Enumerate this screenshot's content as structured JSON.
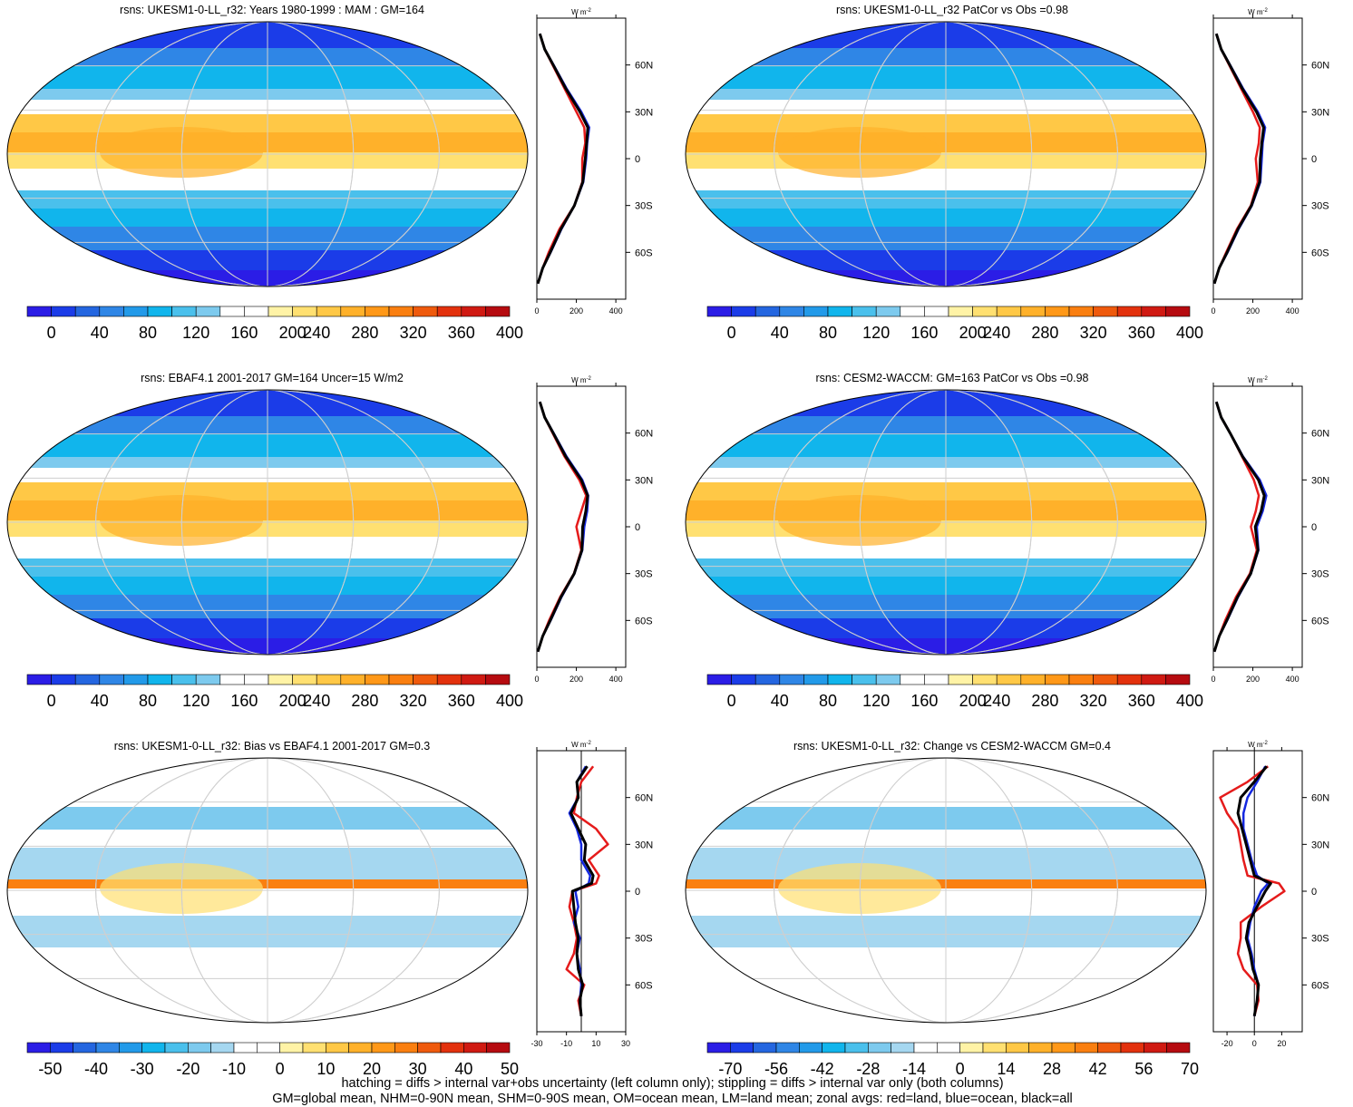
{
  "palettes": {
    "mean": [
      "#2b1de6",
      "#1b3ce8",
      "#2466e0",
      "#2f86e6",
      "#229ae9",
      "#11b5ec",
      "#4ac0ec",
      "#7dcaee",
      "#ffffff",
      "#ffffff",
      "#fff3a6",
      "#ffe071",
      "#ffc846",
      "#ffb12a",
      "#ff9818",
      "#fa7f10",
      "#ef5a0d",
      "#e3310d",
      "#d01a12",
      "#b60b10"
    ],
    "diff": [
      "#2b1de6",
      "#1b3ce8",
      "#2466e0",
      "#2f86e6",
      "#229ae9",
      "#11b5ec",
      "#4ac0ec",
      "#7dcaee",
      "#a5d7f0",
      "#ffffff",
      "#ffffff",
      "#fff3a6",
      "#ffe071",
      "#ffc846",
      "#ffb12a",
      "#ff9818",
      "#fa7f10",
      "#ef5a0d",
      "#e3310d",
      "#d01a12",
      "#b60b10"
    ]
  },
  "line_colors": {
    "land": "#e51b1b",
    "ocean": "#1428e0",
    "all": "#000000"
  },
  "footer": {
    "line1": "hatching = diffs > internal var+obs uncertainty (left column only); stippling = diffs > internal var only (both columns)",
    "line2": "GM=global mean, NHM=0-90N mean, SHM=0-90S mean, OM=ocean mean, LM=land mean; zonal avgs: red=land, blue=ocean, black=all"
  },
  "chart_data": [
    {
      "type": "heatmap",
      "id": "p1",
      "title": "rsns: UKESM1-0-LL_r32: Years 1980-1999 : MAM : GM=164",
      "colorbar_labels": [
        "0",
        "40",
        "80",
        "120",
        "160",
        "200",
        "240",
        "280",
        "320",
        "360",
        "400"
      ],
      "zonal_profile": {
        "type": "line",
        "unit_label": "W m",
        "unit_exp": "-2",
        "xlim": [
          0,
          450
        ],
        "xticks": [
          "0",
          "200",
          "400"
        ],
        "ylim": [
          -90,
          90
        ],
        "yticks": [
          "60N",
          "30N",
          "0",
          "30S",
          "60S"
        ],
        "lat": [
          -80,
          -70,
          -60,
          -45,
          -30,
          -15,
          0,
          10,
          20,
          30,
          45,
          60,
          70,
          80
        ],
        "series": [
          {
            "name": "land",
            "values": [
              5,
              30,
              60,
              115,
              190,
              230,
              230,
              245,
              240,
              200,
              140,
              80,
              40,
              15
            ]
          },
          {
            "name": "ocean",
            "values": [
              5,
              30,
              70,
              125,
              190,
              235,
              250,
              255,
              265,
              225,
              150,
              85,
              40,
              15
            ]
          },
          {
            "name": "all",
            "values": [
              5,
              30,
              68,
              122,
              190,
              233,
              245,
              252,
              258,
              218,
              146,
              83,
              40,
              15
            ]
          }
        ]
      }
    },
    {
      "type": "heatmap",
      "id": "p2",
      "title": "rsns: UKESM1-0-LL_r32 PatCor vs Obs =0.98",
      "colorbar_labels": [
        "0",
        "40",
        "80",
        "120",
        "160",
        "200",
        "240",
        "280",
        "320",
        "360",
        "400"
      ],
      "zonal_profile": {
        "type": "line",
        "unit_label": "W m",
        "unit_exp": "-2",
        "xlim": [
          0,
          450
        ],
        "xticks": [
          "0",
          "200",
          "400"
        ],
        "ylim": [
          -90,
          90
        ],
        "yticks": [
          "60N",
          "30N",
          "0",
          "30S",
          "60S"
        ],
        "lat": [
          -80,
          -70,
          -60,
          -45,
          -30,
          -15,
          0,
          10,
          20,
          30,
          45,
          60,
          70,
          80
        ],
        "series": [
          {
            "name": "land",
            "values": [
              5,
              30,
              65,
              120,
              190,
              225,
              215,
              230,
              235,
              200,
              140,
              80,
              40,
              15
            ]
          },
          {
            "name": "ocean",
            "values": [
              5,
              30,
              72,
              128,
              195,
              238,
              245,
              250,
              262,
              225,
              150,
              85,
              40,
              15
            ]
          },
          {
            "name": "all",
            "values": [
              5,
              30,
              70,
              125,
              193,
              234,
              238,
              245,
              255,
              218,
              146,
              83,
              40,
              15
            ]
          }
        ]
      }
    },
    {
      "type": "heatmap",
      "id": "p3",
      "title": "rsns: EBAF4.1 2001-2017 GM=164 Uncer=15 W/m2",
      "colorbar_labels": [
        "0",
        "40",
        "80",
        "120",
        "160",
        "200",
        "240",
        "280",
        "320",
        "360",
        "400"
      ],
      "zonal_profile": {
        "type": "line",
        "unit_label": "W m",
        "unit_exp": "-2",
        "xlim": [
          0,
          450
        ],
        "xticks": [
          "0",
          "200",
          "400"
        ],
        "ylim": [
          -90,
          90
        ],
        "yticks": [
          "60N",
          "30N",
          "0",
          "30S",
          "60S"
        ],
        "lat": [
          -80,
          -70,
          -60,
          -45,
          -30,
          -15,
          0,
          10,
          20,
          30,
          45,
          60,
          70,
          80
        ],
        "series": [
          {
            "name": "land",
            "values": [
              5,
              30,
              62,
              118,
              188,
              225,
              200,
              225,
              250,
              215,
              140,
              80,
              40,
              15
            ]
          },
          {
            "name": "ocean",
            "values": [
              5,
              30,
              70,
              125,
              190,
              230,
              240,
              255,
              260,
              230,
              150,
              85,
              40,
              15
            ]
          },
          {
            "name": "all",
            "values": [
              5,
              30,
              68,
              122,
              189,
              228,
              232,
              248,
              257,
              225,
              146,
              83,
              40,
              15
            ]
          }
        ]
      }
    },
    {
      "type": "heatmap",
      "id": "p4",
      "title": "rsns: CESM2-WACCM: GM=163 PatCor vs Obs =0.98",
      "colorbar_labels": [
        "0",
        "40",
        "80",
        "120",
        "160",
        "200",
        "240",
        "280",
        "320",
        "360",
        "400"
      ],
      "zonal_profile": {
        "type": "line",
        "unit_label": "W m",
        "unit_exp": "-2",
        "xlim": [
          0,
          450
        ],
        "xticks": [
          "0",
          "200",
          "400"
        ],
        "ylim": [
          -90,
          90
        ],
        "yticks": [
          "60N",
          "30N",
          "0",
          "30S",
          "60S"
        ],
        "lat": [
          -80,
          -70,
          -60,
          -45,
          -30,
          -15,
          0,
          10,
          20,
          30,
          45,
          60,
          70,
          80
        ],
        "series": [
          {
            "name": "land",
            "values": [
              5,
              30,
              60,
              115,
              185,
              220,
              190,
              215,
              230,
              205,
              145,
              85,
              40,
              15
            ]
          },
          {
            "name": "ocean",
            "values": [
              5,
              30,
              70,
              125,
              190,
              228,
              220,
              250,
              268,
              235,
              150,
              85,
              40,
              15
            ]
          },
          {
            "name": "all",
            "values": [
              5,
              30,
              68,
              122,
              189,
              226,
              212,
              242,
              258,
              228,
              148,
              85,
              40,
              15
            ]
          }
        ]
      }
    },
    {
      "type": "heatmap",
      "id": "p5",
      "title": "rsns: UKESM1-0-LL_r32: Bias vs EBAF4.1 2001-2017 GM=0.3",
      "colorbar_labels": [
        "-50",
        "-40",
        "-30",
        "-20",
        "-10",
        "0",
        "10",
        "20",
        "30",
        "40",
        "50"
      ],
      "zonal_profile": {
        "type": "line",
        "unit_label": "W m",
        "unit_exp": "-2",
        "xlim": [
          -30,
          30
        ],
        "xticks": [
          "-30",
          "-10",
          "10",
          "30"
        ],
        "zero_line": true,
        "ylim": [
          -90,
          90
        ],
        "yticks": [
          "60N",
          "30N",
          "0",
          "30S",
          "60S"
        ],
        "lat": [
          -80,
          -70,
          -60,
          -50,
          -40,
          -30,
          -20,
          -10,
          0,
          5,
          10,
          20,
          30,
          40,
          50,
          60,
          70,
          80
        ],
        "series": [
          {
            "name": "land",
            "values": [
              0,
              -2,
              2,
              -10,
              -5,
              -3,
              -5,
              -8,
              -6,
              10,
              12,
              5,
              18,
              10,
              -5,
              -3,
              0,
              8
            ]
          },
          {
            "name": "ocean",
            "values": [
              0,
              -1,
              0,
              -1,
              -3,
              -1,
              -5,
              -2,
              -4,
              5,
              6,
              0,
              0,
              -3,
              -8,
              -2,
              -3,
              3
            ]
          },
          {
            "name": "all",
            "values": [
              0,
              -1,
              1,
              -2,
              -3,
              -2,
              -4,
              -5,
              -6,
              7,
              8,
              2,
              3,
              -2,
              -7,
              -2,
              -3,
              4
            ]
          }
        ]
      }
    },
    {
      "type": "heatmap",
      "id": "p6",
      "title": "rsns: UKESM1-0-LL_r32: Change vs CESM2-WACCM GM=0.4",
      "colorbar_labels": [
        "-70",
        "-56",
        "-42",
        "-28",
        "-14",
        "0",
        "14",
        "28",
        "42",
        "56",
        "70"
      ],
      "zonal_profile": {
        "type": "line",
        "unit_label": "W m",
        "unit_exp": "-2",
        "xlim": [
          -30,
          35
        ],
        "xticks": [
          "-20",
          "0",
          "20"
        ],
        "zero_line": true,
        "ylim": [
          -90,
          90
        ],
        "yticks": [
          "60N",
          "30N",
          "0",
          "30S",
          "60S"
        ],
        "lat": [
          -80,
          -70,
          -60,
          -50,
          -40,
          -30,
          -20,
          -10,
          0,
          5,
          10,
          20,
          30,
          40,
          50,
          60,
          70,
          80
        ],
        "series": [
          {
            "name": "land",
            "values": [
              0,
              3,
              2,
              -8,
              -12,
              -10,
              -10,
              5,
              22,
              18,
              -5,
              -8,
              -10,
              -12,
              -20,
              -25,
              -5,
              10
            ]
          },
          {
            "name": "ocean",
            "values": [
              0,
              2,
              3,
              0,
              -2,
              -5,
              -3,
              0,
              5,
              10,
              2,
              -2,
              -5,
              -8,
              -8,
              -5,
              2,
              8
            ]
          },
          {
            "name": "all",
            "values": [
              0,
              2,
              3,
              -1,
              -3,
              -6,
              -4,
              2,
              8,
              12,
              0,
              -3,
              -6,
              -9,
              -12,
              -10,
              0,
              9
            ]
          }
        ]
      }
    }
  ]
}
